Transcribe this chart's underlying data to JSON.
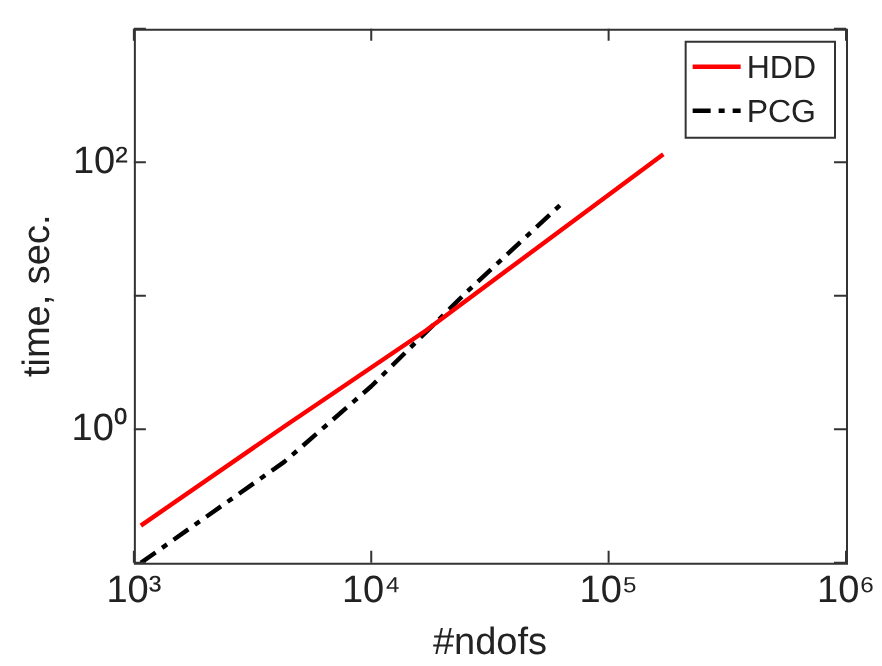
{
  "chart_data": {
    "type": "line",
    "xlabel": "#ndofs",
    "ylabel": "time, sec.",
    "log": "xy",
    "grid": false,
    "legend": "top right",
    "marker": "none",
    "xlim": [
      1000,
      1000000
    ],
    "xticks": [
      {
        "value": 1000,
        "label": "10³"
      },
      {
        "value": 10000,
        "label": "10⁴"
      },
      {
        "value": 100000,
        "label": "10⁵"
      },
      {
        "value": 1000000,
        "label": "10⁶"
      }
    ],
    "ylim": [
      0.1,
      1000
    ],
    "yticks": [
      {
        "value": 0.1,
        "label": null
      },
      {
        "value": 1,
        "label": "10⁰"
      },
      {
        "value": 10,
        "label": null
      },
      {
        "value": 100,
        "label": "10²"
      },
      {
        "value": 1000,
        "label": null
      }
    ],
    "series": [
      {
        "name": "HDD",
        "color": "#ff0000",
        "line_style": "solid",
        "x": [
          1070,
          4300,
          17000,
          170000
        ],
        "values": [
          0.19,
          1.05,
          5.5,
          115
        ]
      },
      {
        "name": "PCG",
        "color": "#000000",
        "line_style": "dashed",
        "x": [
          1070,
          4300,
          10000,
          25000,
          65000
        ],
        "values": [
          0.1,
          0.57,
          2.1,
          10.5,
          51
        ]
      }
    ]
  }
}
